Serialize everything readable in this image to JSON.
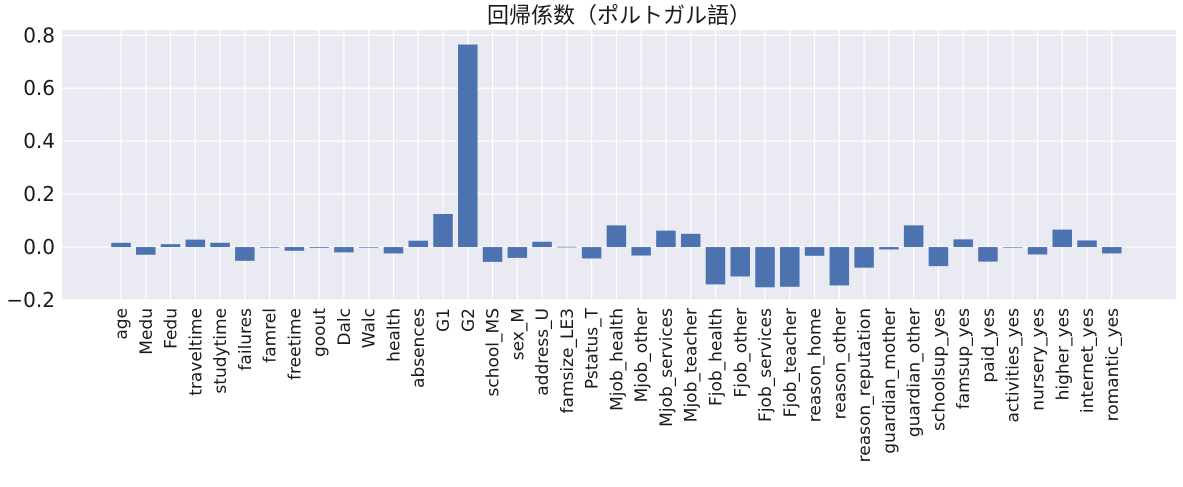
{
  "chart_data": {
    "type": "bar",
    "title": "回帰係数（ポルトガル語）",
    "xlabel": "",
    "ylabel": "",
    "ylim": [
      -0.2,
      0.82
    ],
    "yticks": [
      -0.2,
      0.0,
      0.2,
      0.4,
      0.6,
      0.8
    ],
    "ytick_labels": [
      "−0.2",
      "0.0",
      "0.2",
      "0.4",
      "0.6",
      "0.8"
    ],
    "grid": true,
    "bar_color": "#4c72b0",
    "background_color": "#eaeaf2",
    "categories": [
      "age",
      "Medu",
      "Fedu",
      "traveltime",
      "studytime",
      "failures",
      "famrel",
      "freetime",
      "goout",
      "Dalc",
      "Walc",
      "health",
      "absences",
      "G1",
      "G2",
      "school_MS",
      "sex_M",
      "address_U",
      "famsize_LE3",
      "Pstatus_T",
      "Mjob_health",
      "Mjob_other",
      "Mjob_services",
      "Mjob_teacher",
      "Fjob_health",
      "Fjob_other",
      "Fjob_services",
      "Fjob_teacher",
      "reason_home",
      "reason_other",
      "reason_reputation",
      "guardian_mother",
      "guardian_other",
      "schoolsup_yes",
      "famsup_yes",
      "paid_yes",
      "activities_yes",
      "nursery_yes",
      "higher_yes",
      "internet_yes",
      "romantic_yes"
    ],
    "values": [
      0.016,
      -0.029,
      0.011,
      0.028,
      0.016,
      -0.052,
      -0.001,
      -0.014,
      -0.003,
      -0.02,
      -0.001,
      -0.024,
      0.024,
      0.125,
      0.765,
      -0.056,
      -0.041,
      0.02,
      0.001,
      -0.043,
      0.082,
      -0.032,
      0.062,
      0.05,
      -0.141,
      -0.111,
      -0.152,
      -0.15,
      -0.033,
      -0.145,
      -0.078,
      -0.009,
      0.082,
      -0.072,
      0.029,
      -0.055,
      -0.001,
      -0.028,
      0.066,
      0.025,
      -0.024
    ]
  }
}
